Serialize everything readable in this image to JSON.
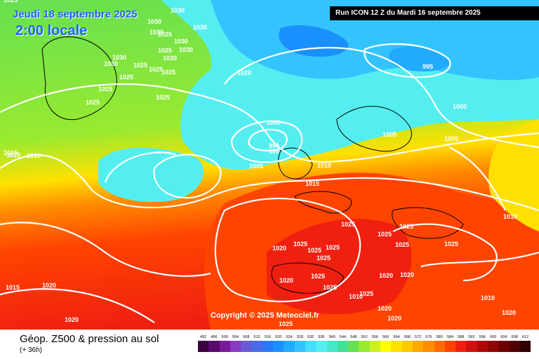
{
  "header": {
    "date": "Jeudi 18 septembre 2025",
    "time": "2:00 locale",
    "run": "Run ICON 12 Z du Mardi 16 septembre 2025"
  },
  "copyright": "Copyright © 2025 Meteociel.fr",
  "legend": {
    "title": "Géop. Z500 & pression au sol",
    "subtitle": "(+ 36h)",
    "ticks": [
      "492",
      "496",
      "500",
      "504",
      "508",
      "512",
      "516",
      "520",
      "524",
      "528",
      "532",
      "536",
      "540",
      "544",
      "548",
      "552",
      "556",
      "560",
      "564",
      "568",
      "572",
      "576",
      "580",
      "584",
      "588",
      "592",
      "596",
      "600",
      "604",
      "608",
      "612"
    ],
    "colors": [
      "#3a0040",
      "#5a0a6e",
      "#7a1a9c",
      "#8a3ac0",
      "#6a5ad8",
      "#4a6ae8",
      "#2a7af8",
      "#1a90ff",
      "#22aaff",
      "#33c4ff",
      "#44ddff",
      "#55eef0",
      "#44e8c8",
      "#44e098",
      "#66e050",
      "#99ea30",
      "#ccf020",
      "#ffff00",
      "#ffe000",
      "#ffc800",
      "#ffa800",
      "#ff8c00",
      "#ff6a00",
      "#ff4400",
      "#f02010",
      "#d01010",
      "#b00808",
      "#900404",
      "#700000",
      "#500000",
      "#300000"
    ]
  },
  "pressure_labels": [
    "1030",
    "1030",
    "1030",
    "1025",
    "1030",
    "1030",
    "1030",
    "1030",
    "1030",
    "1025",
    "1025",
    "1030",
    "1025",
    "1025",
    "1025",
    "1025",
    "1025",
    "1025",
    "1025",
    "1015",
    "1015",
    "1015",
    "1020",
    "995",
    "1000",
    "990",
    "995",
    "1005",
    "1010",
    "1015",
    "1005",
    "1005",
    "1000",
    "1010",
    "1025",
    "1025",
    "1025",
    "1025",
    "1020",
    "1025",
    "1025",
    "1025",
    "1025",
    "1025",
    "1020",
    "1020",
    "1025",
    "1025",
    "1010",
    "1020",
    "1020",
    "1020",
    "1010",
    "1015",
    "1020",
    "1020",
    "1020",
    "1025",
    "1025"
  ]
}
